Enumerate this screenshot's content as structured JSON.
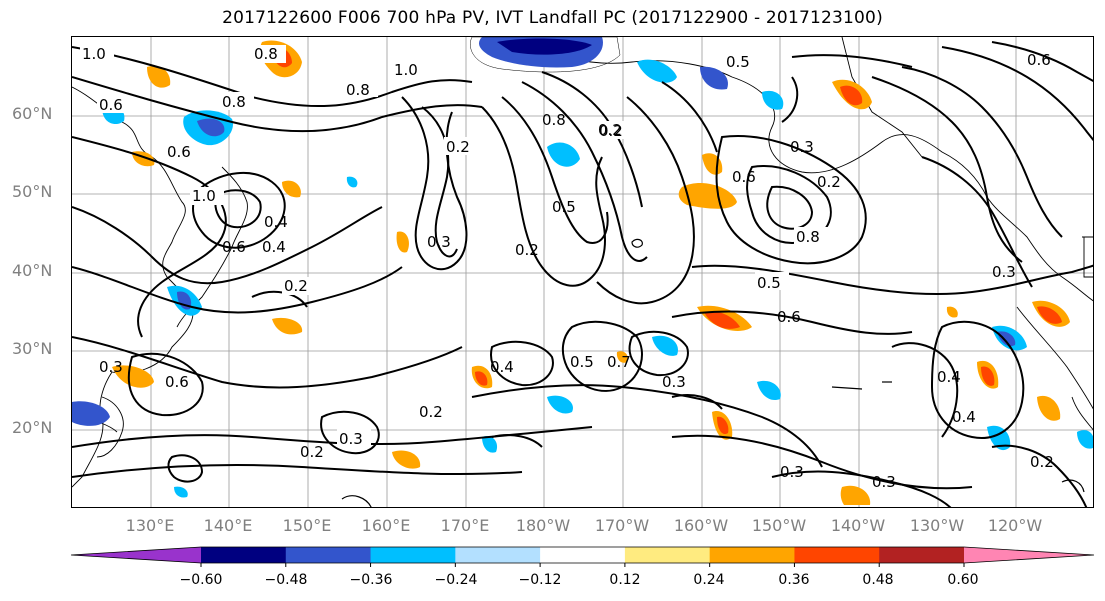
{
  "title": "2017122600 F006 700 hPa PV, IVT Landfall PC (2017122900 - 2017123100)",
  "axes": {
    "lat_labels": [
      "60°N",
      "50°N",
      "40°N",
      "30°N",
      "20°N"
    ],
    "lon_labels": [
      "130°E",
      "140°E",
      "150°E",
      "160°E",
      "170°E",
      "180°W",
      "170°W",
      "160°W",
      "150°W",
      "140°W",
      "130°W",
      "120°W"
    ]
  },
  "colorbar": {
    "tick_labels": [
      "−0.60",
      "−0.48",
      "−0.36",
      "−0.24",
      "−0.12",
      "0.12",
      "0.24",
      "0.36",
      "0.48",
      "0.60"
    ],
    "colors": [
      "#9933cc",
      "#000080",
      "#3355cc",
      "#00bfff",
      "#b3e0ff",
      "#ffffff",
      "#ffeb80",
      "#ffa500",
      "#ff4500",
      "#b22222",
      "#ff85b3"
    ]
  },
  "contour_labels": [
    {
      "text": "1.0"
    },
    {
      "text": "0.8"
    },
    {
      "text": "1.0"
    },
    {
      "text": "0.6"
    },
    {
      "text": "0.8"
    },
    {
      "text": "0.8"
    },
    {
      "text": "0.6"
    },
    {
      "text": "0.5"
    },
    {
      "text": "0.2"
    },
    {
      "text": "0.2"
    },
    {
      "text": "0.8"
    },
    {
      "text": "1.0"
    },
    {
      "text": "0.4"
    },
    {
      "text": "0.3"
    },
    {
      "text": "0.2"
    },
    {
      "text": "0.5"
    },
    {
      "text": "0.2"
    },
    {
      "text": "0.6"
    },
    {
      "text": "0.4"
    },
    {
      "text": "0.2"
    },
    {
      "text": "0.3"
    },
    {
      "text": "0.8"
    },
    {
      "text": "0.6"
    },
    {
      "text": "0.2"
    },
    {
      "text": "0.5"
    },
    {
      "text": "0.6"
    },
    {
      "text": "0.4"
    },
    {
      "text": "0.5"
    },
    {
      "text": "0.6"
    },
    {
      "text": "0.2"
    },
    {
      "text": "0.3"
    },
    {
      "text": "0.2"
    },
    {
      "text": "0.4"
    },
    {
      "text": "0.3"
    },
    {
      "text": "0.3"
    },
    {
      "text": "0.3"
    },
    {
      "text": "0.4"
    },
    {
      "text": "0.2"
    },
    {
      "text": "0.3"
    },
    {
      "text": "0.3"
    },
    {
      "text": "0.6"
    },
    {
      "text": "0.7"
    }
  ]
}
